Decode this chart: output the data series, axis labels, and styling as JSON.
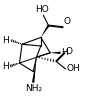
{
  "bg_color": "#ffffff",
  "bond_color": "#000000",
  "text_color": "#000000",
  "figsize": [
    0.86,
    1.09
  ],
  "dpi": 100,
  "xlim": [
    0,
    1
  ],
  "ylim": [
    0,
    1
  ],
  "fontsize": 6.5
}
